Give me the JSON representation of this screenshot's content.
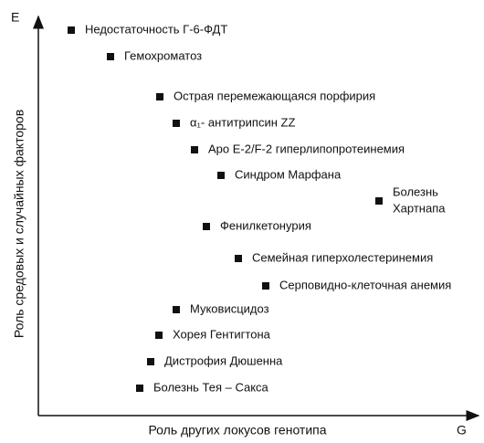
{
  "axes": {
    "y_letter": "E",
    "x_letter": "G",
    "y_label": "Роль средовых и случайных факторов",
    "x_label": "Роль других локусов генотипа"
  },
  "items": [
    {
      "label": [
        "Недостаточность Г-6-ФДТ"
      ]
    },
    {
      "label": [
        "Гемохроматоз"
      ]
    },
    {
      "label": [
        "Острая перемежающаяся порфирия"
      ]
    },
    {
      "label": [
        "α₁- антитрипсин ZZ"
      ]
    },
    {
      "label": [
        "Apo E-2/F-2 гиперлипопротеинемия"
      ]
    },
    {
      "label": [
        "Синдром Марфана"
      ]
    },
    {
      "label": [
        "Болезнь",
        "Хартнапа"
      ]
    },
    {
      "label": [
        "Фенилкетонурия"
      ]
    },
    {
      "label": [
        "Семейная гиперхолестеринемия"
      ]
    },
    {
      "label": [
        "Серповидно-клеточная анемия"
      ]
    },
    {
      "label": [
        "Муковисцидоз"
      ]
    },
    {
      "label": [
        "Хорея Гентигтона"
      ]
    },
    {
      "label": [
        "Дистрофия Дюшенна"
      ]
    },
    {
      "label": [
        "Болезнь Тея – Сакса"
      ]
    }
  ]
}
